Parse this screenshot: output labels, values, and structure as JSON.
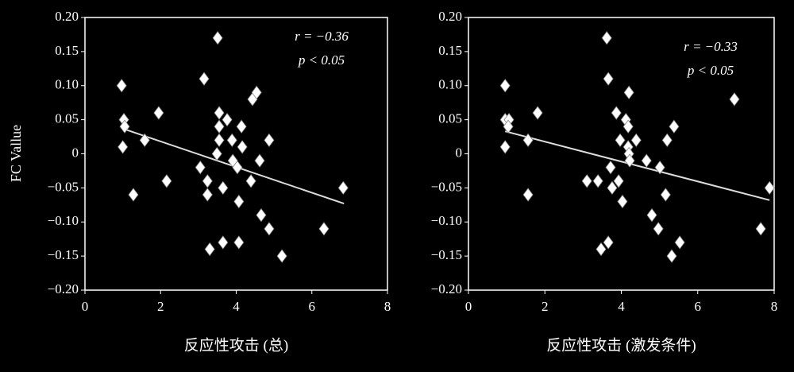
{
  "chart_data": [
    {
      "type": "scatter",
      "xlabel": "反应性攻击 (总)",
      "ylabel": "FC Vallue",
      "annotations": [
        "r = −0.36",
        "p < 0.05"
      ],
      "color": "#ffffff",
      "x": [
        0.97,
        1.03,
        1.05,
        1.0,
        1.28,
        1.58,
        1.95,
        2.16,
        3.05,
        3.15,
        3.24,
        3.24,
        3.3,
        3.51,
        3.55,
        3.55,
        3.55,
        3.49,
        3.65,
        3.76,
        3.65,
        3.89,
        3.91,
        4.03,
        4.14,
        4.16,
        4.07,
        4.07,
        4.39,
        4.43,
        4.54,
        4.62,
        4.66,
        4.87,
        4.87,
        5.21,
        6.32,
        6.83
      ],
      "values": [
        0.1,
        0.05,
        0.04,
        0.01,
        -0.06,
        0.02,
        0.06,
        -0.04,
        -0.02,
        0.11,
        -0.04,
        -0.06,
        -0.14,
        0.17,
        0.06,
        0.04,
        0.02,
        0.0,
        -0.05,
        0.05,
        -0.13,
        0.02,
        -0.01,
        -0.02,
        0.04,
        0.01,
        -0.07,
        -0.13,
        -0.04,
        0.08,
        0.09,
        -0.01,
        -0.09,
        -0.11,
        0.02,
        -0.15,
        -0.11,
        -0.05
      ],
      "trendline": {
        "x": [
          1.0,
          6.85
        ],
        "values": [
          0.037,
          -0.073
        ]
      },
      "xlim": [
        0,
        8
      ],
      "xticks": [
        0,
        2,
        4,
        6,
        8
      ],
      "ylim": [
        -0.2,
        0.2
      ],
      "yticks": [
        {
          "value": -0.2,
          "label": "−0.20"
        },
        {
          "value": -0.15,
          "label": "−0.15"
        },
        {
          "value": -0.1,
          "label": "−0.10"
        },
        {
          "value": -0.05,
          "label": "−0.05"
        },
        0,
        0.05,
        {
          "value": 0.1,
          "label": "0.10"
        },
        0.15,
        {
          "value": 0.2,
          "label": "0.20"
        }
      ]
    },
    {
      "type": "scatter",
      "xlabel": "反应性攻击 (激发条件)",
      "annotations": [
        "r = −0.33",
        "p < 0.05"
      ],
      "color": "#ffffff",
      "x": [
        0.96,
        0.96,
        1.06,
        1.04,
        0.96,
        1.56,
        1.56,
        1.81,
        3.1,
        3.39,
        3.47,
        3.62,
        3.66,
        3.66,
        3.72,
        3.76,
        3.87,
        3.93,
        3.97,
        4.03,
        4.12,
        4.18,
        4.18,
        4.2,
        4.22,
        4.2,
        4.39,
        4.66,
        4.8,
        4.97,
        5.01,
        5.16,
        5.2,
        5.32,
        5.38,
        5.53,
        6.96,
        7.65,
        7.88
      ],
      "values": [
        0.1,
        0.05,
        0.05,
        0.04,
        0.01,
        0.02,
        -0.06,
        0.06,
        -0.04,
        -0.04,
        -0.14,
        0.17,
        0.11,
        -0.13,
        -0.02,
        -0.05,
        0.06,
        -0.04,
        0.02,
        -0.07,
        0.05,
        0.04,
        0.01,
        0.0,
        -0.01,
        0.09,
        0.02,
        -0.01,
        -0.09,
        -0.11,
        -0.02,
        -0.06,
        0.02,
        -0.15,
        0.04,
        -0.13,
        0.08,
        -0.11,
        -0.05
      ],
      "trendline": {
        "x": [
          0.96,
          7.88
        ],
        "values": [
          0.033,
          -0.068
        ]
      },
      "xlim": [
        0,
        8
      ],
      "xticks": [
        0,
        2,
        4,
        6,
        8
      ],
      "ylim": [
        -0.2,
        0.2
      ],
      "yticks": [
        {
          "value": -0.2,
          "label": "−0.20"
        },
        {
          "value": -0.15,
          "label": "−0.15"
        },
        {
          "value": -0.1,
          "label": "−0.10"
        },
        {
          "value": -0.05,
          "label": "−0.05"
        },
        0,
        0.05,
        {
          "value": 0.1,
          "label": "0.10"
        },
        0.15,
        {
          "value": 0.2,
          "label": "0.20"
        }
      ]
    }
  ]
}
